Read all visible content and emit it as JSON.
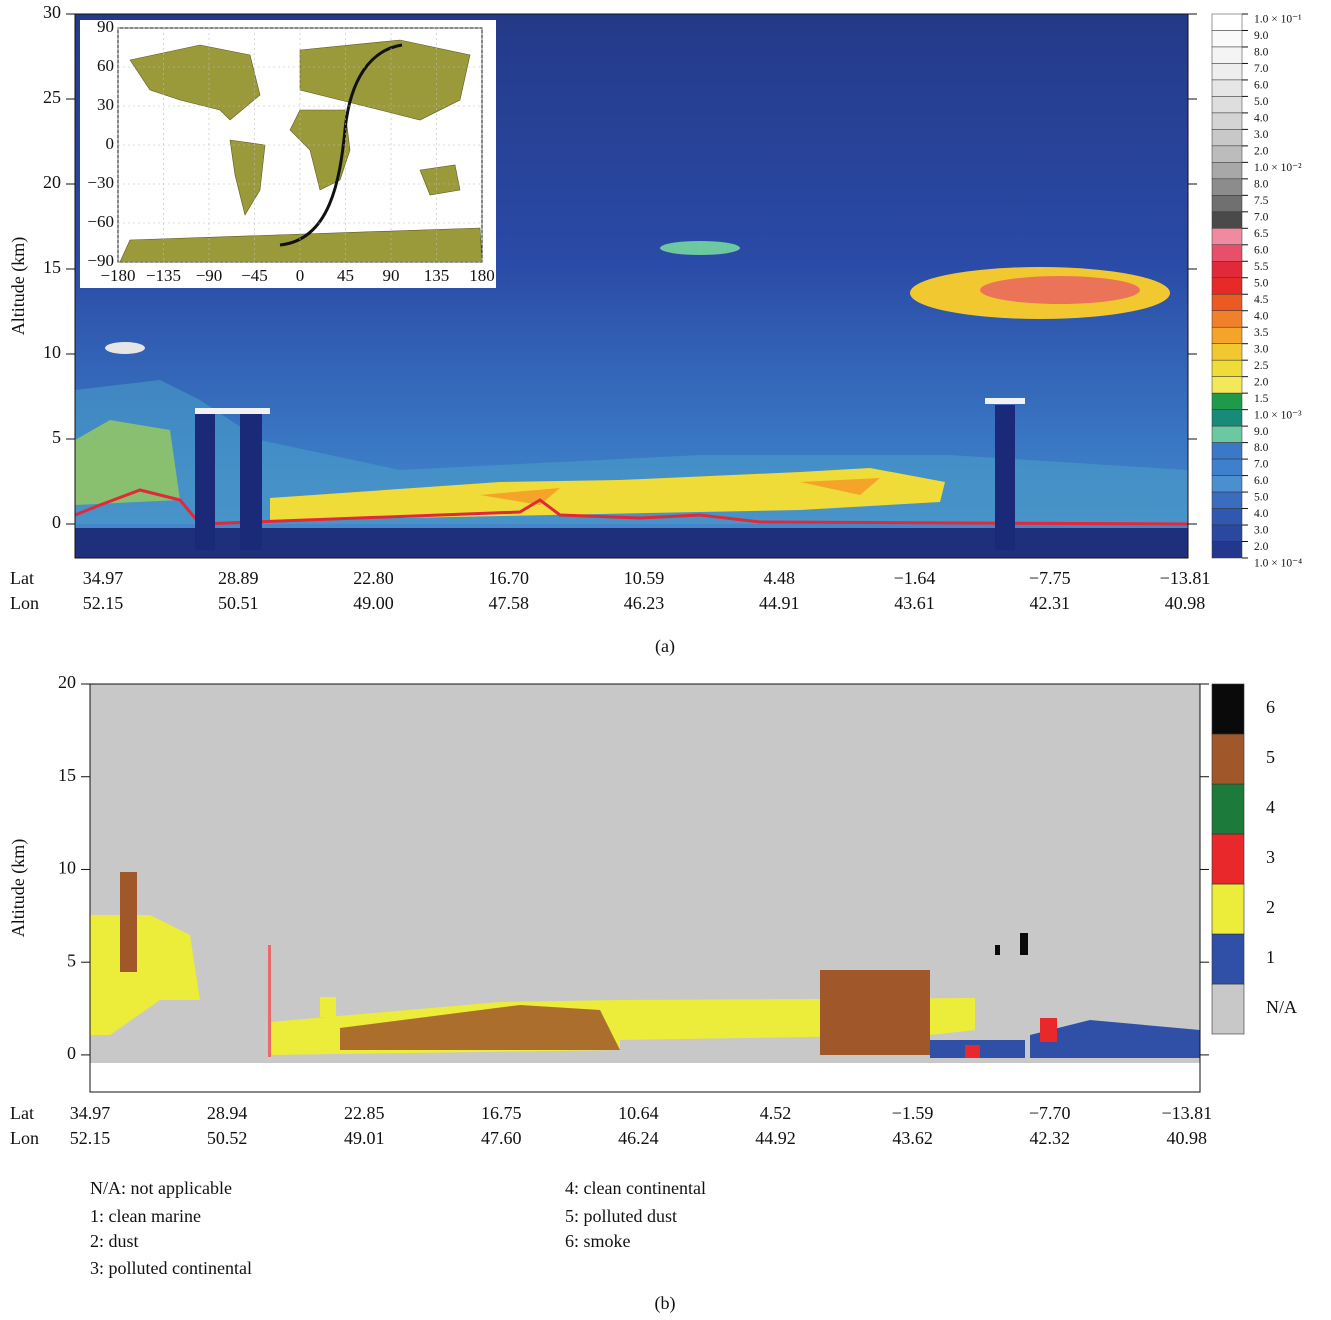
{
  "chart_data": [
    {
      "type": "curtain",
      "label": "(a)",
      "ylabel": "Altitude (km)",
      "ylim": [
        -2,
        30
      ],
      "yticks": [
        0,
        5,
        10,
        15,
        20,
        25,
        30
      ],
      "x_rows": [
        {
          "name": "Lat",
          "labels": [
            "34.97",
            "28.89",
            "22.80",
            "16.70",
            "10.59",
            "4.48",
            "−1.64",
            "−7.75",
            "−13.81"
          ]
        },
        {
          "name": "Lon",
          "labels": [
            "52.15",
            "50.51",
            "49.00",
            "47.58",
            "46.23",
            "44.91",
            "43.61",
            "42.31",
            "40.98"
          ]
        }
      ],
      "colorbar": {
        "labels": [
          "1.0 × 10⁻¹",
          "9.0",
          "8.0",
          "7.0",
          "6.0",
          "5.0",
          "4.0",
          "3.0",
          "2.0",
          "1.0 × 10⁻²",
          "8.0",
          "7.5",
          "7.0",
          "6.5",
          "6.0",
          "5.5",
          "5.0",
          "4.5",
          "4.0",
          "3.5",
          "3.0",
          "2.5",
          "2.0",
          "1.5",
          "1.0 × 10⁻³",
          "9.0",
          "8.0",
          "7.0",
          "6.0",
          "5.0",
          "4.0",
          "3.0",
          "2.0",
          "1.0 × 10⁻⁴"
        ],
        "colors": [
          "#ffffff",
          "#fafafa",
          "#f4f4f4",
          "#eeeeee",
          "#e6e6e6",
          "#dedede",
          "#d4d4d4",
          "#c8c8c8",
          "#bcbcbc",
          "#a8a8a8",
          "#8c8c8c",
          "#707070",
          "#4a4a4a",
          "#f08aa0",
          "#e8506a",
          "#e02a3a",
          "#e62a28",
          "#ea5a22",
          "#f0802a",
          "#f4a428",
          "#f2c830",
          "#f0dc38",
          "#f2e85a",
          "#1f9a4a",
          "#178a7a",
          "#6cc8a0",
          "#3a78c8",
          "#3e80cc",
          "#4a90d0",
          "#3a6cc0",
          "#3058b0",
          "#2a48a0",
          "#23378f"
        ]
      },
      "inset": {
        "xlim": [
          -180,
          180
        ],
        "ylim": [
          -90,
          90
        ],
        "xticks": [
          {
            "value": -180,
            "label": "−180"
          },
          {
            "value": -135,
            "label": "−135"
          },
          {
            "value": -90,
            "label": "−90"
          },
          {
            "value": -45,
            "label": "−45"
          },
          0,
          45,
          90,
          135,
          180
        ],
        "yticks": [
          90,
          60,
          30,
          0,
          {
            "value": -30,
            "label": "−30"
          },
          {
            "value": -60,
            "label": "−60"
          },
          {
            "value": -90,
            "label": "−90"
          }
        ]
      }
    },
    {
      "type": "classification",
      "label": "(b)",
      "ylabel": "Altitude (km)",
      "ylim": [
        -2,
        20
      ],
      "yticks": [
        0,
        5,
        10,
        15,
        20
      ],
      "x_rows": [
        {
          "name": "Lat",
          "labels": [
            "34.97",
            "28.94",
            "22.85",
            "16.75",
            "10.64",
            "4.52",
            "−1.59",
            "−7.70",
            "−13.81"
          ]
        },
        {
          "name": "Lon",
          "labels": [
            "52.15",
            "50.52",
            "49.01",
            "47.60",
            "46.24",
            "44.92",
            "43.62",
            "42.32",
            "40.98"
          ]
        }
      ],
      "colorbar": {
        "labels": [
          "N/A",
          "1",
          "2",
          "3",
          "4",
          "5",
          "6"
        ],
        "colors": [
          "#c8c8c8",
          "#3050a8",
          "#ecec3a",
          "#e8282a",
          "#1c7a3a",
          "#a0582a",
          "#0a0a0a"
        ]
      },
      "legend": [
        "N/A: not applicable",
        "1: clean marine",
        "2: dust",
        "3: polluted continental",
        "4: clean continental",
        "5: polluted dust",
        "6: smoke"
      ]
    }
  ]
}
